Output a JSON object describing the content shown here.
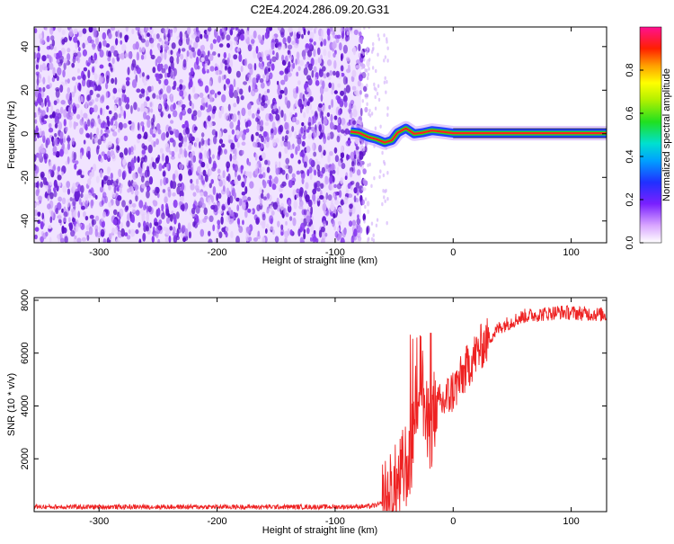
{
  "chart_data": [
    {
      "type": "heatmap",
      "title": "C2E4.2024.286.09.20.G31",
      "xlabel": "Height of straight line (km)",
      "ylabel": "Frequency (Hz)",
      "xlim": [
        -355,
        130
      ],
      "ylim": [
        -50,
        49
      ],
      "x_ticks": [
        -300,
        -200,
        -100,
        0,
        100
      ],
      "y_ticks": [
        -40,
        -20,
        0,
        20,
        40
      ],
      "colorbar": {
        "label": "Normalized spectral amplitude",
        "ticks": [
          0.0,
          0.2,
          0.4,
          0.6,
          0.8
        ],
        "range": [
          0,
          1
        ]
      },
      "noise_region_x": [
        -355,
        -78
      ],
      "signal_ridge": [
        {
          "x": -87,
          "y": 1.0
        },
        {
          "x": -80,
          "y": 0.5
        },
        {
          "x": -72,
          "y": -1.5
        },
        {
          "x": -65,
          "y": -2.5
        },
        {
          "x": -58,
          "y": -4.0
        },
        {
          "x": -52,
          "y": -3.0
        },
        {
          "x": -47,
          "y": 0.5
        },
        {
          "x": -40,
          "y": 2.5
        },
        {
          "x": -33,
          "y": 0.0
        },
        {
          "x": -26,
          "y": 0.5
        },
        {
          "x": -18,
          "y": 1.5
        },
        {
          "x": -10,
          "y": 1.0
        },
        {
          "x": 0,
          "y": 0.3
        },
        {
          "x": 130,
          "y": 0.3
        }
      ],
      "colors": {
        "ridge_core": "#ff2020",
        "ridge_mid": "#22dd22",
        "ridge_edge": "#2244ff",
        "noise": "#6a1fd6"
      }
    },
    {
      "type": "line",
      "xlabel": "Height of straight line (km)",
      "ylabel": "SNR (10 * v/v)",
      "xlim": [
        -355,
        130
      ],
      "ylim": [
        0,
        8100
      ],
      "x_ticks": [
        -300,
        -200,
        -100,
        0,
        100
      ],
      "y_ticks": [
        2000,
        4000,
        6000,
        8000
      ],
      "series_color": "#ee2222",
      "envelope": [
        {
          "x": -355,
          "y": 180
        },
        {
          "x": -100,
          "y": 180
        },
        {
          "x": -70,
          "y": 200
        },
        {
          "x": -55,
          "y": 350
        },
        {
          "x": -45,
          "y": 1100
        },
        {
          "x": -35,
          "y": 2500
        },
        {
          "x": -28,
          "y": 5500
        },
        {
          "x": -22,
          "y": 3000
        },
        {
          "x": -15,
          "y": 3800
        },
        {
          "x": -5,
          "y": 4300
        },
        {
          "x": 5,
          "y": 4900
        },
        {
          "x": 15,
          "y": 5700
        },
        {
          "x": 25,
          "y": 6300
        },
        {
          "x": 40,
          "y": 7000
        },
        {
          "x": 60,
          "y": 7400
        },
        {
          "x": 90,
          "y": 7550
        },
        {
          "x": 130,
          "y": 7450
        }
      ]
    }
  ]
}
